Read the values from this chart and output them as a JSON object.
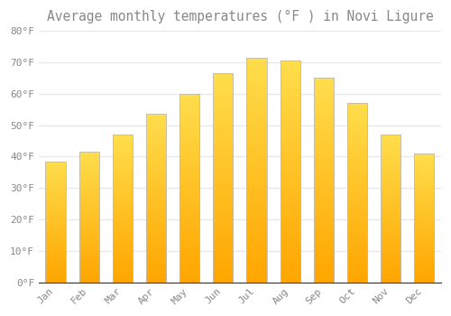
{
  "title": "Average monthly temperatures (°F ) in Novi Ligure",
  "months": [
    "Jan",
    "Feb",
    "Mar",
    "Apr",
    "May",
    "Jun",
    "Jul",
    "Aug",
    "Sep",
    "Oct",
    "Nov",
    "Dec"
  ],
  "values": [
    38.5,
    41.5,
    47.0,
    53.5,
    60.0,
    66.5,
    71.5,
    70.5,
    65.0,
    57.0,
    47.0,
    41.0
  ],
  "bar_color": "#FFC125",
  "bar_edge_color": "#BBBBBB",
  "background_color": "#FFFFFF",
  "plot_bg_color": "#FFFFFF",
  "grid_color": "#E8E8E8",
  "text_color": "#888888",
  "ylim": [
    0,
    80
  ],
  "yticks": [
    0,
    10,
    20,
    30,
    40,
    50,
    60,
    70,
    80
  ],
  "title_fontsize": 10.5,
  "tick_fontsize": 8,
  "font_family": "monospace"
}
